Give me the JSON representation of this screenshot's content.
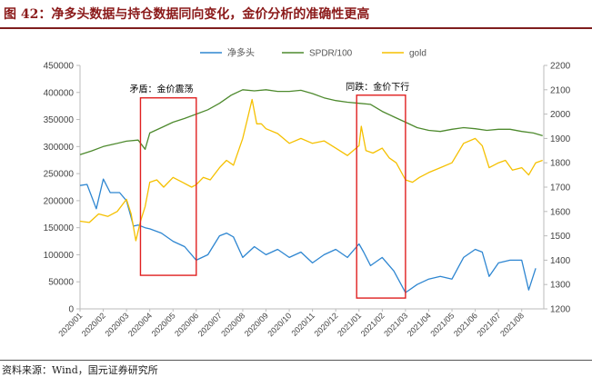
{
  "title": "图 42：净多头数据与持仓数据同向变化，金价分析的准确性更高",
  "source": "资料来源：Wind，国元证券研究所",
  "colors": {
    "net_long": "#2e86d1",
    "spdr": "#4e8a2e",
    "gold": "#f5c000",
    "box": "#e02020",
    "title": "#8b1a1a"
  },
  "chart_data": {
    "type": "line",
    "title": "",
    "grid": false,
    "legend_position": "top",
    "x_categories": [
      "2020/01",
      "2020/02",
      "2020/03",
      "2020/04",
      "2020/05",
      "2020/06",
      "2020/07",
      "2020/08",
      "2020/09",
      "2020/10",
      "2020/11",
      "2020/12",
      "2021/01",
      "2021/02",
      "2021/03",
      "2021/04",
      "2021/05",
      "2021/06",
      "2021/07",
      "2021/08"
    ],
    "y_left": {
      "min": 0,
      "max": 450000,
      "ticks": [
        "0",
        "50000",
        "100000",
        "150000",
        "200000",
        "250000",
        "300000",
        "350000",
        "400000",
        "450000"
      ]
    },
    "y_right": {
      "min": 1200,
      "max": 2200,
      "ticks": [
        "1200",
        "1300",
        "1400",
        "1500",
        "1600",
        "1700",
        "1800",
        "1900",
        "2000",
        "2100",
        "2200"
      ]
    },
    "series": [
      {
        "name": "净多头",
        "axis": "left",
        "color": "#2e86d1",
        "x": [
          0,
          0.3,
          0.7,
          1.0,
          1.3,
          1.7,
          2.0,
          2.3,
          2.5,
          2.8,
          3.0,
          3.5,
          4.0,
          4.5,
          5.0,
          5.5,
          6.0,
          6.3,
          6.6,
          7.0,
          7.5,
          8.0,
          8.5,
          9.0,
          9.5,
          10.0,
          10.5,
          11.0,
          11.5,
          12.0,
          12.2,
          12.5,
          13.0,
          13.5,
          14.0,
          14.5,
          15.0,
          15.5,
          16.0,
          16.5,
          17.0,
          17.3,
          17.6,
          18.0,
          18.5,
          19.0,
          19.3,
          19.6
        ],
        "values": [
          228000,
          230000,
          185000,
          240000,
          215000,
          215000,
          200000,
          153000,
          155000,
          150000,
          148000,
          140000,
          125000,
          115000,
          90000,
          100000,
          135000,
          140000,
          133000,
          95000,
          115000,
          100000,
          110000,
          95000,
          105000,
          85000,
          100000,
          110000,
          95000,
          120000,
          105000,
          80000,
          95000,
          70000,
          30000,
          45000,
          55000,
          60000,
          55000,
          95000,
          110000,
          105000,
          60000,
          85000,
          90000,
          90000,
          35000,
          75000
        ]
      },
      {
        "name": "SPDR/100",
        "axis": "left",
        "color": "#4e8a2e",
        "x": [
          0,
          0.5,
          1.0,
          1.5,
          2.0,
          2.5,
          2.8,
          3.0,
          3.5,
          4.0,
          4.5,
          5.0,
          5.5,
          6.0,
          6.5,
          7.0,
          7.5,
          8.0,
          8.5,
          9.0,
          9.5,
          10.0,
          10.5,
          11.0,
          11.5,
          12.0,
          12.5,
          13.0,
          13.5,
          14.0,
          14.5,
          15.0,
          15.5,
          16.0,
          16.5,
          17.0,
          17.5,
          18.0,
          18.5,
          19.0,
          19.5,
          19.9
        ],
        "values": [
          285000,
          292000,
          300000,
          305000,
          310000,
          312000,
          295000,
          325000,
          335000,
          345000,
          352000,
          360000,
          368000,
          380000,
          395000,
          405000,
          403000,
          405000,
          402000,
          402000,
          404000,
          398000,
          390000,
          385000,
          382000,
          380000,
          378000,
          365000,
          355000,
          345000,
          335000,
          330000,
          328000,
          332000,
          335000,
          333000,
          330000,
          332000,
          332000,
          328000,
          325000,
          320000
        ]
      },
      {
        "name": "gold",
        "axis": "right",
        "color": "#f5c000",
        "x": [
          0,
          0.4,
          0.8,
          1.2,
          1.6,
          2.0,
          2.2,
          2.4,
          2.6,
          2.8,
          3.0,
          3.3,
          3.6,
          4.0,
          4.4,
          4.8,
          5.0,
          5.3,
          5.6,
          6.0,
          6.3,
          6.6,
          7.0,
          7.2,
          7.4,
          7.6,
          7.8,
          8.0,
          8.5,
          9.0,
          9.5,
          10.0,
          10.5,
          11.0,
          11.5,
          12.0,
          12.1,
          12.3,
          12.6,
          13.0,
          13.3,
          13.6,
          14.0,
          14.3,
          14.6,
          15.0,
          15.5,
          16.0,
          16.5,
          17.0,
          17.3,
          17.6,
          18.0,
          18.3,
          18.6,
          19.0,
          19.3,
          19.6,
          19.9
        ],
        "values": [
          1560,
          1555,
          1590,
          1580,
          1600,
          1650,
          1590,
          1480,
          1560,
          1620,
          1720,
          1730,
          1700,
          1740,
          1720,
          1700,
          1710,
          1740,
          1730,
          1780,
          1810,
          1790,
          1900,
          1980,
          2060,
          1960,
          1960,
          1940,
          1920,
          1880,
          1900,
          1880,
          1890,
          1860,
          1830,
          1870,
          1950,
          1850,
          1840,
          1860,
          1820,
          1800,
          1730,
          1720,
          1740,
          1760,
          1780,
          1800,
          1880,
          1900,
          1870,
          1780,
          1800,
          1810,
          1770,
          1780,
          1750,
          1800,
          1810
        ]
      }
    ],
    "annotations": [
      {
        "label": "矛盾：金价震荡",
        "x_from": 2.6,
        "x_to": 5.0
      },
      {
        "label": "同跌：金价下行",
        "x_from": 11.9,
        "x_to": 14.0
      }
    ]
  }
}
